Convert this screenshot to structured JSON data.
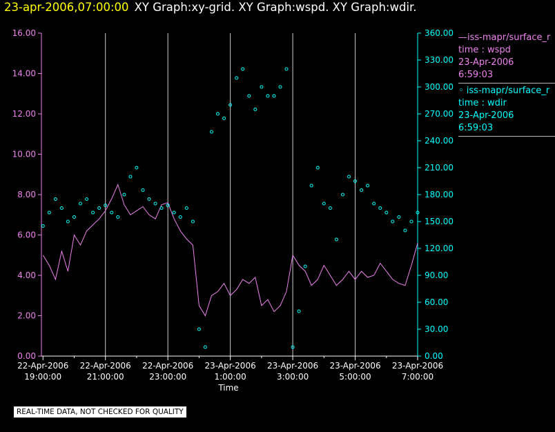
{
  "header": {
    "timestamp": "23-apr-2006,07:00:00",
    "graphs": "XY Graph:xy-grid.  XY Graph:wspd.  XY Graph:wdir."
  },
  "colors": {
    "wspd": "#ee82ee",
    "wdir": "#00ffff",
    "grid": "#cccccc",
    "axis": "#ffffff",
    "stamp": "#ffff00"
  },
  "legend": [
    {
      "line1": "—iss-mapr/surface_r",
      "line2": "time : wspd",
      "line3": "23-Apr-2006",
      "line4": "6:59:03",
      "color": "#ee82ee"
    },
    {
      "line1": "◦ iss-mapr/surface_r",
      "line2": "time : wdir",
      "line3": "23-Apr-2006",
      "line4": "6:59:03",
      "color": "#00ffff"
    }
  ],
  "footer": {
    "quality_note": "REAL-TIME DATA, NOT CHECKED FOR QUALITY"
  },
  "chart_data": {
    "type": "line",
    "xlabel": "Time",
    "x_ticks": [
      {
        "date": "22-Apr-2006",
        "time": "19:00:00",
        "hours": 0
      },
      {
        "date": "22-Apr-2006",
        "time": "21:00:00",
        "hours": 2
      },
      {
        "date": "22-Apr-2006",
        "time": "23:00:00",
        "hours": 4
      },
      {
        "date": "23-Apr-2006",
        "time": "1:00:00",
        "hours": 6
      },
      {
        "date": "23-Apr-2006",
        "time": "3:00:00",
        "hours": 8
      },
      {
        "date": "23-Apr-2006",
        "time": "5:00:00",
        "hours": 10
      },
      {
        "date": "23-Apr-2006",
        "time": "7:00:00",
        "hours": 12
      }
    ],
    "x_range_hours": [
      -0.05,
      12.0
    ],
    "y_left": {
      "ticks": [
        "0.00",
        "2.00",
        "4.00",
        "6.00",
        "8.00",
        "10.00",
        "12.00",
        "14.00",
        "16.00"
      ],
      "range": [
        0,
        16
      ]
    },
    "y_right": {
      "ticks": [
        "0.00",
        "30.00",
        "60.00",
        "90.00",
        "120.00",
        "150.00",
        "180.00",
        "210.00",
        "240.00",
        "270.00",
        "300.00",
        "330.00",
        "360.00"
      ],
      "range": [
        0,
        360
      ]
    },
    "grid": "vertical",
    "series": [
      {
        "axis": "left",
        "style": "line",
        "x": [
          0.0,
          0.2,
          0.4,
          0.6,
          0.8,
          1.0,
          1.2,
          1.4,
          1.6,
          1.8,
          2.0,
          2.2,
          2.4,
          2.6,
          2.8,
          3.0,
          3.2,
          3.4,
          3.6,
          3.8,
          4.0,
          4.2,
          4.4,
          4.6,
          4.8,
          5.0,
          5.2,
          5.4,
          5.6,
          5.8,
          6.0,
          6.2,
          6.4,
          6.6,
          6.8,
          7.0,
          7.2,
          7.4,
          7.6,
          7.8,
          8.0,
          8.2,
          8.4,
          8.6,
          8.8,
          9.0,
          9.2,
          9.4,
          9.6,
          9.8,
          10.0,
          10.2,
          10.4,
          10.6,
          10.8,
          11.0,
          11.2,
          11.4,
          11.6,
          11.8,
          12.0
        ],
        "values": [
          5.0,
          4.5,
          3.8,
          5.2,
          4.2,
          6.0,
          5.5,
          6.2,
          6.5,
          6.8,
          7.2,
          7.8,
          8.5,
          7.5,
          7.0,
          7.2,
          7.4,
          7.0,
          6.8,
          7.5,
          7.6,
          6.8,
          6.2,
          5.8,
          5.5,
          2.5,
          2.0,
          3.0,
          3.2,
          3.6,
          3.0,
          3.3,
          3.8,
          3.6,
          3.9,
          2.5,
          2.8,
          2.2,
          2.5,
          3.2,
          5.0,
          4.5,
          4.2,
          3.5,
          3.8,
          4.5,
          4.0,
          3.5,
          3.8,
          4.2,
          3.8,
          4.2,
          3.9,
          4.0,
          4.6,
          4.2,
          3.8,
          3.6,
          3.5,
          4.5,
          5.6
        ]
      },
      {
        "axis": "right",
        "style": "markers",
        "x": [
          0.0,
          0.2,
          0.4,
          0.6,
          0.8,
          1.0,
          1.2,
          1.4,
          1.6,
          1.8,
          2.0,
          2.2,
          2.4,
          2.6,
          2.8,
          3.0,
          3.2,
          3.4,
          3.6,
          3.8,
          4.0,
          4.2,
          4.4,
          4.6,
          4.8,
          5.0,
          5.2,
          5.4,
          5.6,
          5.8,
          6.0,
          6.2,
          6.4,
          6.6,
          6.8,
          7.0,
          7.2,
          7.4,
          7.6,
          7.8,
          8.0,
          8.2,
          8.4,
          8.6,
          8.8,
          9.0,
          9.2,
          9.4,
          9.6,
          9.8,
          10.0,
          10.2,
          10.4,
          10.6,
          10.8,
          11.0,
          11.2,
          11.4,
          11.6,
          11.8,
          12.0
        ],
        "values": [
          145,
          160,
          175,
          165,
          150,
          155,
          170,
          175,
          160,
          165,
          168,
          160,
          155,
          180,
          200,
          210,
          185,
          175,
          170,
          165,
          168,
          160,
          155,
          165,
          150,
          30,
          10,
          250,
          270,
          265,
          280,
          310,
          320,
          290,
          275,
          300,
          290,
          290,
          300,
          320,
          10,
          50,
          100,
          190,
          210,
          170,
          165,
          130,
          180,
          200,
          195,
          185,
          190,
          170,
          165,
          160,
          150,
          155,
          140,
          150,
          160
        ]
      }
    ]
  }
}
